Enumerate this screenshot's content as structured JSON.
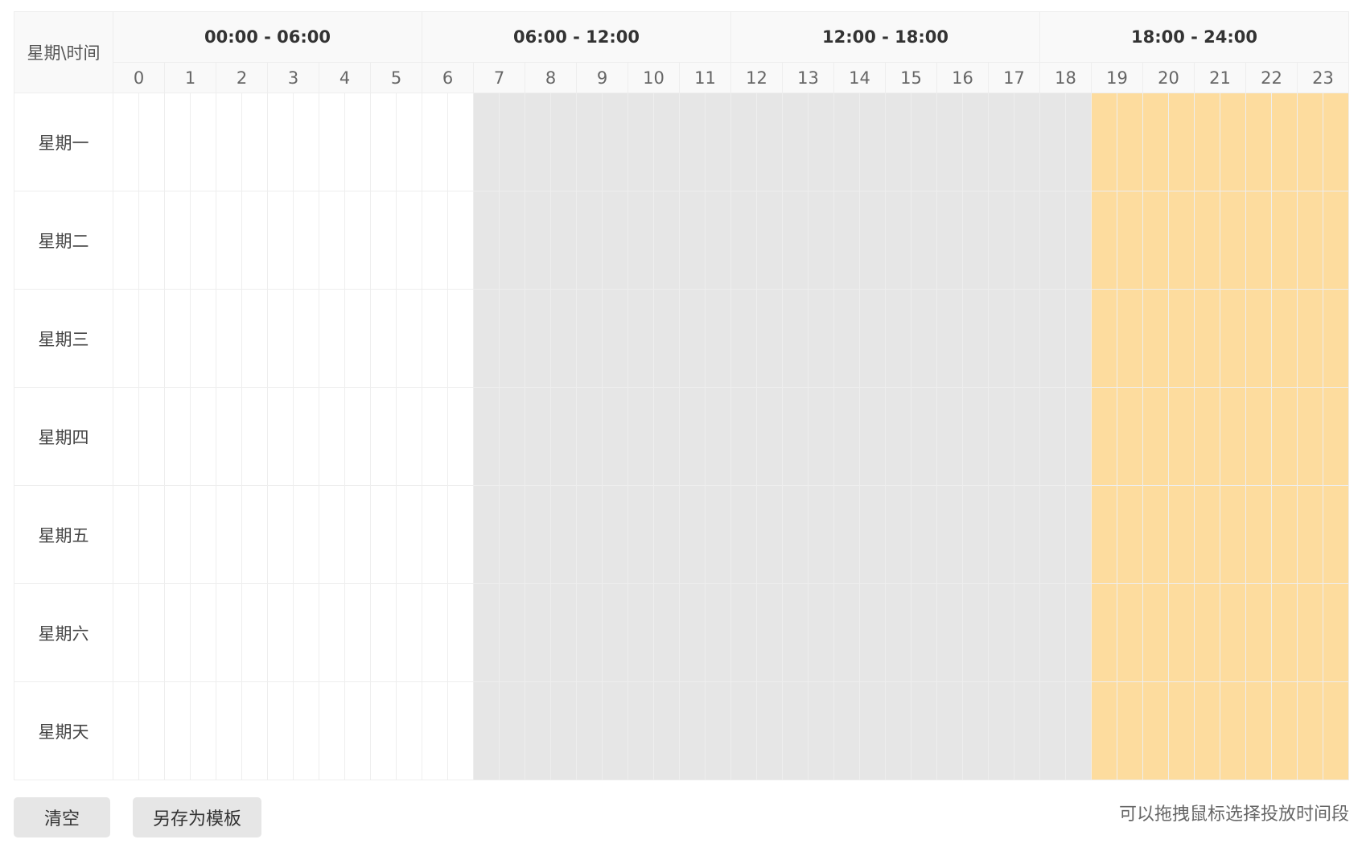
{
  "corner_label": "星期\\时间",
  "ranges": [
    "00:00 - 06:00",
    "06:00 - 12:00",
    "12:00 - 18:00",
    "18:00 - 24:00"
  ],
  "hours": [
    "0",
    "1",
    "2",
    "3",
    "4",
    "5",
    "6",
    "7",
    "8",
    "9",
    "10",
    "11",
    "12",
    "13",
    "14",
    "15",
    "16",
    "17",
    "18",
    "19",
    "20",
    "21",
    "22",
    "23"
  ],
  "days": [
    "星期一",
    "星期二",
    "星期三",
    "星期四",
    "星期五",
    "星期六",
    "星期天"
  ],
  "cell_states": {
    "unavailable_hours": [
      7,
      19
    ],
    "selected_hours": [
      19,
      24
    ]
  },
  "colors": {
    "unavailable": "#e6e6e6",
    "selected": "#fddc9e",
    "empty": "#ffffff"
  },
  "buttons": {
    "clear": "清空",
    "save_template": "另存为模板"
  },
  "tip": "可以拖拽鼠标选择投放时间段"
}
